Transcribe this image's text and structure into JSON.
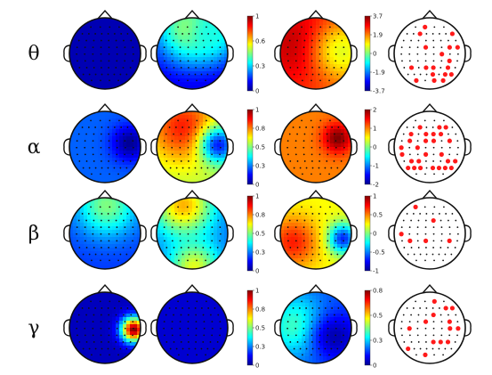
{
  "figure": {
    "rows": [
      {
        "band": "θ",
        "colorbar_a": {
          "ticks": [
            "1",
            "0.6",
            "0.3",
            "0"
          ]
        },
        "colorbar_b": {
          "ticks": [
            "3.7",
            "1.9",
            "0",
            "-1.9",
            "-3.7"
          ]
        },
        "maps": [
          {
            "pattern": "uniform-low",
            "level": 0.05,
            "hotspots": []
          },
          {
            "pattern": "top-band",
            "level": 0.08,
            "hotspots": [
              {
                "u": 0.45,
                "v": 0.12,
                "value": 0.55,
                "spread": 0.35
              },
              {
                "u": 0.75,
                "v": 0.2,
                "value": 0.4,
                "spread": 0.25
              }
            ]
          },
          {
            "pattern": "broad-high",
            "level": 0.78,
            "hotspots": [
              {
                "u": 0.25,
                "v": 0.35,
                "value": 0.95,
                "spread": 0.45
              },
              {
                "u": 0.85,
                "v": 0.45,
                "value": 0.6,
                "spread": 0.3
              }
            ]
          }
        ],
        "significant_electrodes": 18
      },
      {
        "band": "α",
        "colorbar_a": {
          "ticks": [
            "1",
            "0.8",
            "0.5",
            "0.3",
            "0"
          ]
        },
        "colorbar_b": {
          "ticks": [
            "2",
            "1",
            "0",
            "-1",
            "-2"
          ]
        },
        "maps": [
          {
            "pattern": "low-right-dip",
            "level": 0.22,
            "hotspots": [
              {
                "u": 0.82,
                "v": 0.42,
                "value": 0.02,
                "spread": 0.18
              }
            ]
          },
          {
            "pattern": "mid-high",
            "level": 0.55,
            "hotspots": [
              {
                "u": 0.35,
                "v": 0.2,
                "value": 0.85,
                "spread": 0.35
              },
              {
                "u": 0.85,
                "v": 0.45,
                "value": 0.15,
                "spread": 0.18
              }
            ]
          },
          {
            "pattern": "broad-high",
            "level": 0.75,
            "hotspots": [
              {
                "u": 0.78,
                "v": 0.35,
                "value": 1.0,
                "spread": 0.15
              }
            ]
          }
        ],
        "significant_electrodes": 27
      },
      {
        "band": "β",
        "colorbar_a": {
          "ticks": [
            "1",
            "0.8",
            "0.5",
            "0.3",
            "0"
          ]
        },
        "colorbar_b": {
          "ticks": [
            "1",
            "0.5",
            "0",
            "-0.5",
            "-1"
          ]
        },
        "maps": [
          {
            "pattern": "low-top-rim",
            "level": 0.18,
            "hotspots": [
              {
                "u": 0.5,
                "v": 0.08,
                "value": 0.5,
                "spread": 0.3
              }
            ]
          },
          {
            "pattern": "low-top-rim",
            "level": 0.22,
            "hotspots": [
              {
                "u": 0.35,
                "v": 0.08,
                "value": 0.7,
                "spread": 0.3
              },
              {
                "u": 0.5,
                "v": 0.95,
                "value": 0.6,
                "spread": 0.25
              }
            ]
          },
          {
            "pattern": "mid-high",
            "level": 0.62,
            "hotspots": [
              {
                "u": 0.85,
                "v": 0.55,
                "value": 0.15,
                "spread": 0.15
              },
              {
                "u": 0.15,
                "v": 0.6,
                "value": 0.85,
                "spread": 0.25
              }
            ]
          }
        ],
        "significant_electrodes": 6
      },
      {
        "band": "γ",
        "colorbar_a": {
          "ticks": [
            "1",
            "0.8",
            "0.5",
            "0.3",
            "0"
          ]
        },
        "colorbar_b": {
          "ticks": [
            "0.8",
            "0.5",
            "0.3",
            "0"
          ]
        },
        "maps": [
          {
            "pattern": "low-right-hot",
            "level": 0.06,
            "hotspots": [
              {
                "u": 0.88,
                "v": 0.5,
                "value": 1.0,
                "spread": 0.12
              }
            ]
          },
          {
            "pattern": "uniform-low",
            "level": 0.08,
            "hotspots": []
          },
          {
            "pattern": "low-left-rim",
            "level": 0.2,
            "hotspots": [
              {
                "u": 0.2,
                "v": 0.45,
                "value": 0.45,
                "spread": 0.3
              },
              {
                "u": 0.75,
                "v": 0.6,
                "value": 0.05,
                "spread": 0.25
              }
            ]
          }
        ],
        "significant_electrodes": 14
      }
    ]
  }
}
